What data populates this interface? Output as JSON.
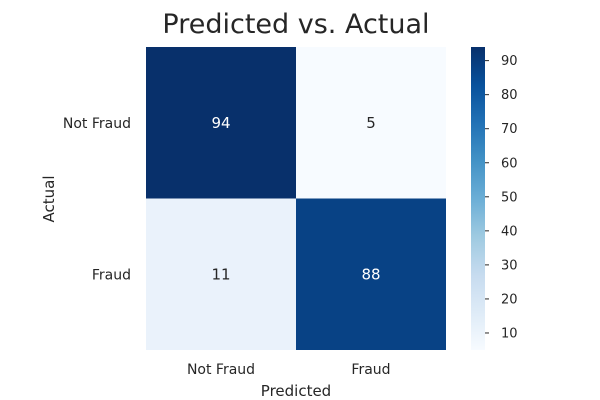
{
  "chart_data": {
    "type": "heatmap",
    "title": "Predicted vs. Actual",
    "xlabel": "Predicted",
    "ylabel": "Actual",
    "x_categories": [
      "Not Fraud",
      "Fraud"
    ],
    "y_categories": [
      "Not Fraud",
      "Fraud"
    ],
    "values": [
      [
        94,
        5
      ],
      [
        11,
        88
      ]
    ],
    "colormap": "Blues",
    "colorbar": {
      "range": [
        5,
        94
      ],
      "ticks": [
        10,
        20,
        30,
        40,
        50,
        60,
        70,
        80,
        90
      ]
    },
    "colors": {
      "low": "#f7fbff",
      "high": "#08306b",
      "text_dark": "#262626",
      "text_light": "#ffffff"
    }
  }
}
